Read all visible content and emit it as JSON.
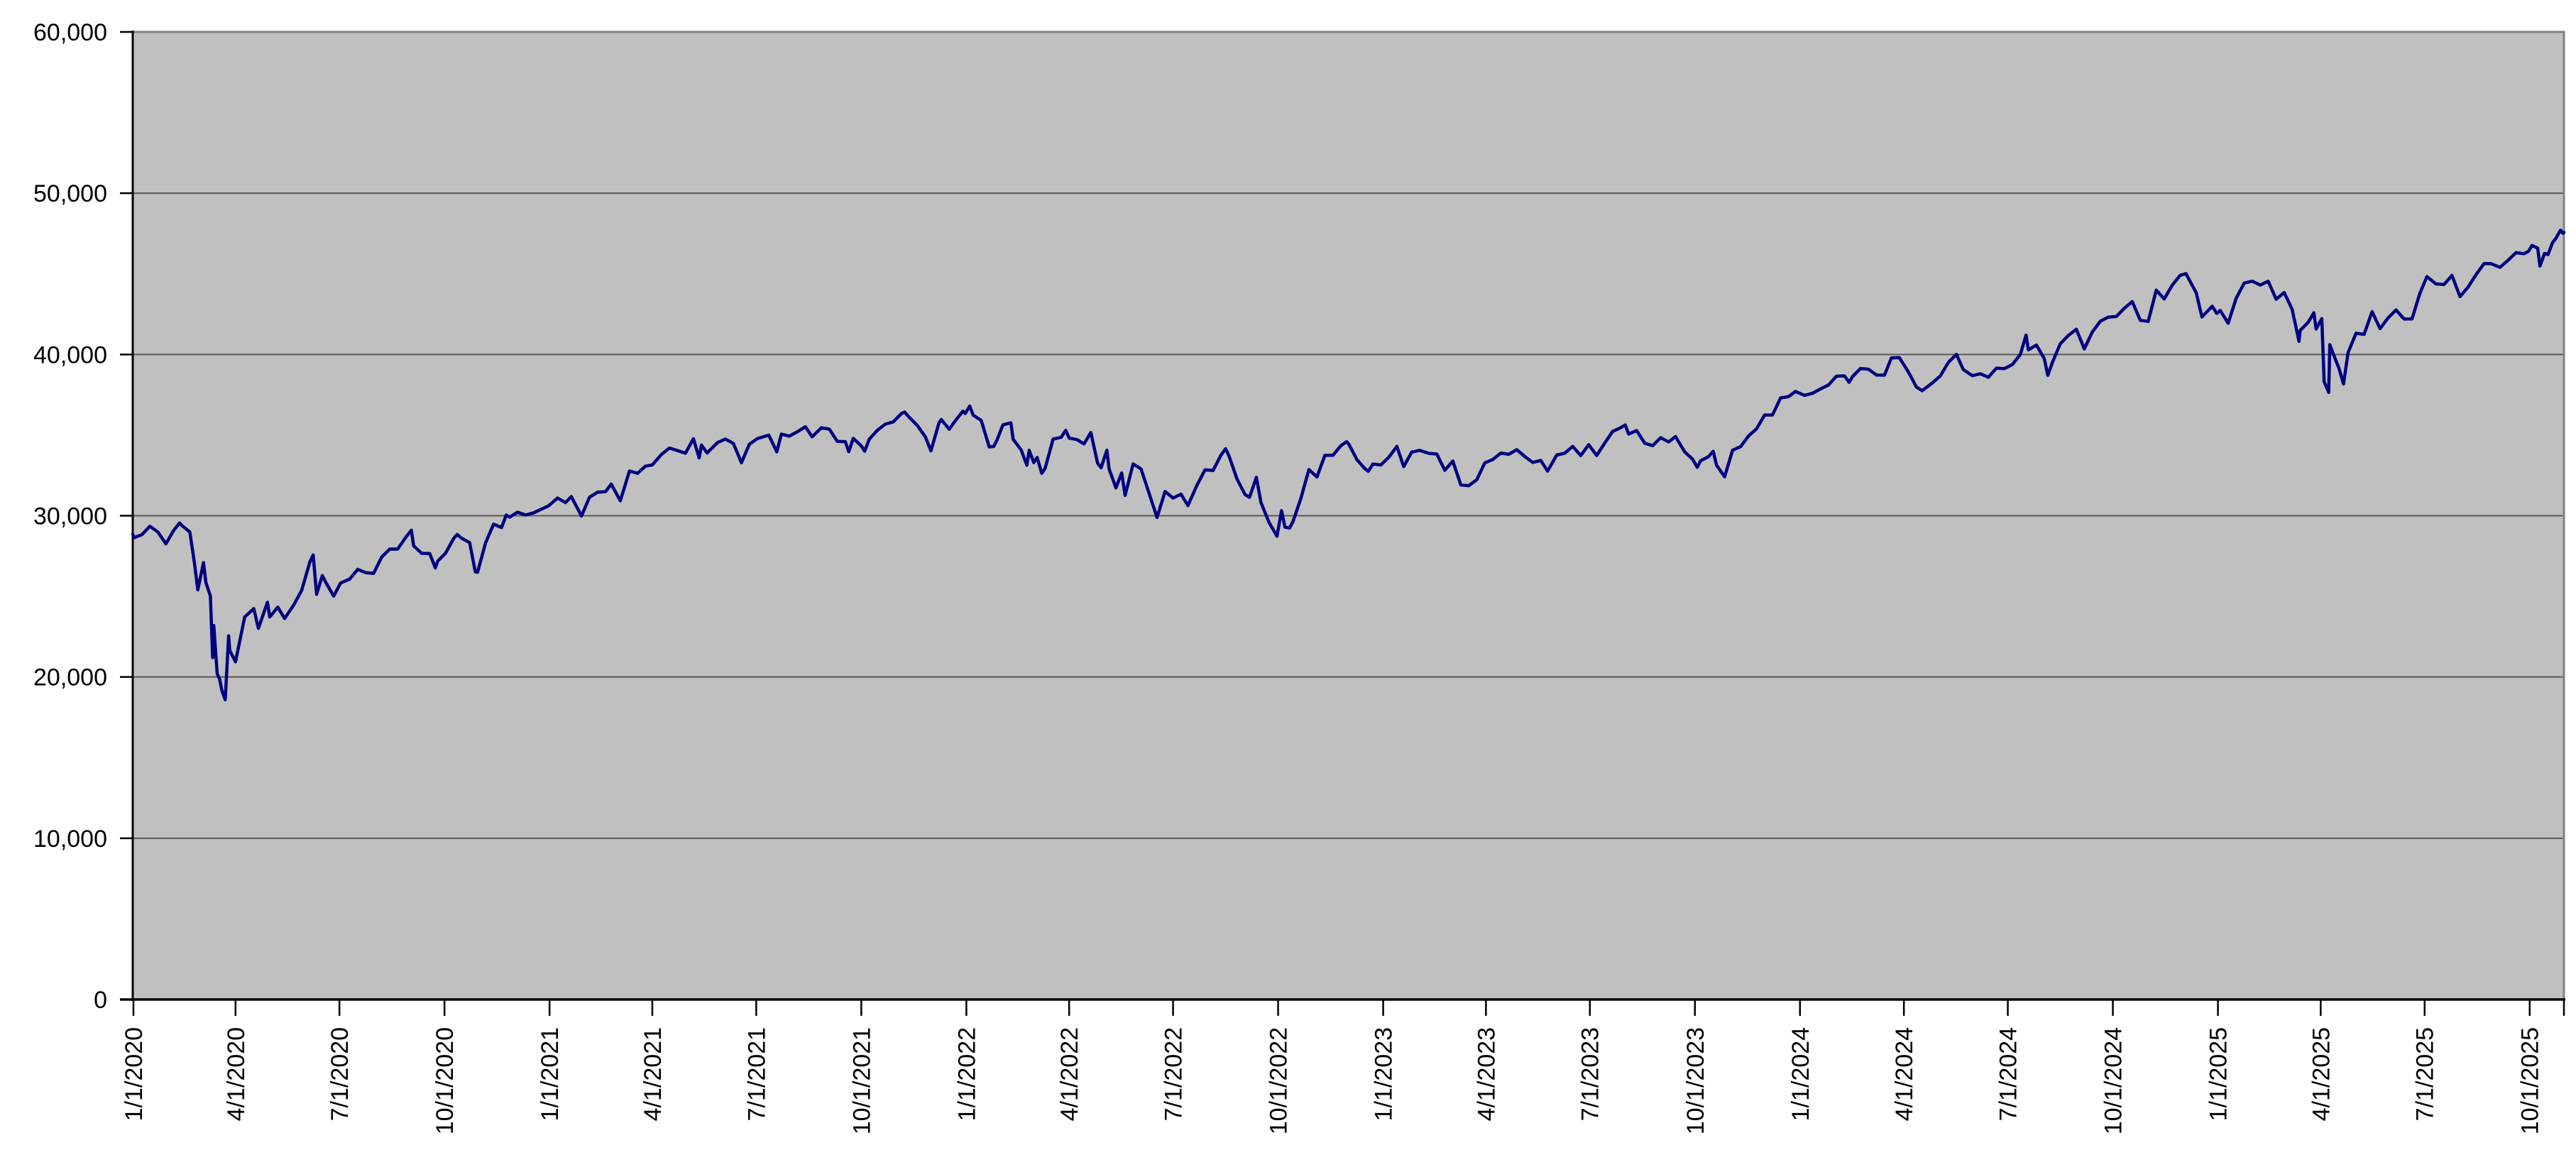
{
  "colors": {
    "page_bg": "#ffffff",
    "plot_bg": "#c0c0c0",
    "line": "#000080",
    "gridline": "#595959",
    "plot_border": "#808080",
    "axis": "#000000",
    "label": "#000000"
  },
  "chart_data": {
    "type": "line",
    "title": "",
    "legend": "none",
    "grid": true,
    "ylim": [
      0,
      60000
    ],
    "y_ticks": [
      0,
      10000,
      20000,
      30000,
      40000,
      50000,
      60000
    ],
    "y_tick_labels": [
      "0",
      "10,000",
      "20,000",
      "30,000",
      "40,000",
      "50,000",
      "60,000"
    ],
    "x_tick_labels": [
      "1/1/2020",
      "4/1/2020",
      "7/1/2020",
      "10/1/2020",
      "1/1/2021",
      "4/1/2021",
      "7/1/2021",
      "10/1/2021",
      "1/1/2022",
      "4/1/2022",
      "7/1/2022",
      "10/1/2022",
      "1/1/2023",
      "4/1/2023",
      "7/1/2023",
      "10/1/2023",
      "1/1/2024",
      "4/1/2024",
      "7/1/2024",
      "10/1/2024",
      "1/1/2025",
      "4/1/2025",
      "7/1/2025",
      "10/1/2025"
    ],
    "points": [
      [
        "1/2/2020",
        28869
      ],
      [
        "1/3/2020",
        28635
      ],
      [
        "1/10/2020",
        28824
      ],
      [
        "1/17/2020",
        29348
      ],
      [
        "1/24/2020",
        28990
      ],
      [
        "1/31/2020",
        28256
      ],
      [
        "2/7/2020",
        29103
      ],
      [
        "2/12/2020",
        29551
      ],
      [
        "2/14/2020",
        29398
      ],
      [
        "2/21/2020",
        28992
      ],
      [
        "2/25/2020",
        27081
      ],
      [
        "2/28/2020",
        25409
      ],
      [
        "3/4/2020",
        27091
      ],
      [
        "3/6/2020",
        25865
      ],
      [
        "3/10/2020",
        25018
      ],
      [
        "3/12/2020",
        21201
      ],
      [
        "3/13/2020",
        23186
      ],
      [
        "3/16/2020",
        20188
      ],
      [
        "3/18/2020",
        19899
      ],
      [
        "3/20/2020",
        19174
      ],
      [
        "3/23/2020",
        18592
      ],
      [
        "3/26/2020",
        22552
      ],
      [
        "3/27/2020",
        21637
      ],
      [
        "4/1/2020",
        20944
      ],
      [
        "4/9/2020",
        23719
      ],
      [
        "4/17/2020",
        24242
      ],
      [
        "4/21/2020",
        23019
      ],
      [
        "4/29/2020",
        24634
      ],
      [
        "5/1/2020",
        23724
      ],
      [
        "5/8/2020",
        24331
      ],
      [
        "5/14/2020",
        23625
      ],
      [
        "5/22/2020",
        24465
      ],
      [
        "5/29/2020",
        25383
      ],
      [
        "6/5/2020",
        27111
      ],
      [
        "6/8/2020",
        27572
      ],
      [
        "6/11/2020",
        25128
      ],
      [
        "6/16/2020",
        26290
      ],
      [
        "6/19/2020",
        25871
      ],
      [
        "6/26/2020",
        25016
      ],
      [
        "7/2/2020",
        25827
      ],
      [
        "7/10/2020",
        26075
      ],
      [
        "7/17/2020",
        26672
      ],
      [
        "7/24/2020",
        26470
      ],
      [
        "7/31/2020",
        26428
      ],
      [
        "8/7/2020",
        27433
      ],
      [
        "8/14/2020",
        27931
      ],
      [
        "8/21/2020",
        27930
      ],
      [
        "8/28/2020",
        28654
      ],
      [
        "9/2/2020",
        29101
      ],
      [
        "9/4/2020",
        28133
      ],
      [
        "9/11/2020",
        27666
      ],
      [
        "9/18/2020",
        27657
      ],
      [
        "9/23/2020",
        26763
      ],
      [
        "9/25/2020",
        27174
      ],
      [
        "10/2/2020",
        27683
      ],
      [
        "10/9/2020",
        28587
      ],
      [
        "10/12/2020",
        28838
      ],
      [
        "10/16/2020",
        28606
      ],
      [
        "10/23/2020",
        28336
      ],
      [
        "10/28/2020",
        26520
      ],
      [
        "10/30/2020",
        26502
      ],
      [
        "11/6/2020",
        28323
      ],
      [
        "11/13/2020",
        29480
      ],
      [
        "11/20/2020",
        29263
      ],
      [
        "11/24/2020",
        30046
      ],
      [
        "11/27/2020",
        29910
      ],
      [
        "12/4/2020",
        30218
      ],
      [
        "12/11/2020",
        30046
      ],
      [
        "12/18/2020",
        30179
      ],
      [
        "12/31/2020",
        30606
      ],
      [
        "1/8/2021",
        31098
      ],
      [
        "1/15/2021",
        30814
      ],
      [
        "1/20/2021",
        31188
      ],
      [
        "1/29/2021",
        29983
      ],
      [
        "2/5/2021",
        31148
      ],
      [
        "2/12/2021",
        31458
      ],
      [
        "2/19/2021",
        31494
      ],
      [
        "2/24/2021",
        31962
      ],
      [
        "3/4/2021",
        30924
      ],
      [
        "3/12/2021",
        32779
      ],
      [
        "3/19/2021",
        32628
      ],
      [
        "3/26/2021",
        33073
      ],
      [
        "4/1/2021",
        33153
      ],
      [
        "4/9/2021",
        33801
      ],
      [
        "4/16/2021",
        34201
      ],
      [
        "4/23/2021",
        34043
      ],
      [
        "4/30/2021",
        33875
      ],
      [
        "5/7/2021",
        34778
      ],
      [
        "5/12/2021",
        33588
      ],
      [
        "5/14/2021",
        34382
      ],
      [
        "5/19/2021",
        33896
      ],
      [
        "5/28/2021",
        34529
      ],
      [
        "6/4/2021",
        34756
      ],
      [
        "6/11/2021",
        34480
      ],
      [
        "6/18/2021",
        33290
      ],
      [
        "6/25/2021",
        34434
      ],
      [
        "7/2/2021",
        34786
      ],
      [
        "7/12/2021",
        34996
      ],
      [
        "7/19/2021",
        33962
      ],
      [
        "7/23/2021",
        35062
      ],
      [
        "7/30/2021",
        34935
      ],
      [
        "8/6/2021",
        35209
      ],
      [
        "8/13/2021",
        35515
      ],
      [
        "8/19/2021",
        34894
      ],
      [
        "8/27/2021",
        35456
      ],
      [
        "9/3/2021",
        35369
      ],
      [
        "9/10/2021",
        34608
      ],
      [
        "9/17/2021",
        34585
      ],
      [
        "9/20/2021",
        33970
      ],
      [
        "9/24/2021",
        34798
      ],
      [
        "10/1/2021",
        34326
      ],
      [
        "10/4/2021",
        34003
      ],
      [
        "10/8/2021",
        34746
      ],
      [
        "10/15/2021",
        35295
      ],
      [
        "10/22/2021",
        35677
      ],
      [
        "10/29/2021",
        35820
      ],
      [
        "11/5/2021",
        36328
      ],
      [
        "11/8/2021",
        36432
      ],
      [
        "11/12/2021",
        36100
      ],
      [
        "11/19/2021",
        35602
      ],
      [
        "11/26/2021",
        34899
      ],
      [
        "12/1/2021",
        34022
      ],
      [
        "12/8/2021",
        35755
      ],
      [
        "12/10/2021",
        35971
      ],
      [
        "12/17/2021",
        35365
      ],
      [
        "12/23/2021",
        35950
      ],
      [
        "12/29/2021",
        36489
      ],
      [
        "12/31/2021",
        36338
      ],
      [
        "1/4/2022",
        36800
      ],
      [
        "1/7/2022",
        36232
      ],
      [
        "1/14/2022",
        35912
      ],
      [
        "1/21/2022",
        34265
      ],
      [
        "1/25/2022",
        34297
      ],
      [
        "1/28/2022",
        34725
      ],
      [
        "2/2/2022",
        35629
      ],
      [
        "2/9/2022",
        35768
      ],
      [
        "2/11/2022",
        34738
      ],
      [
        "2/18/2022",
        34079
      ],
      [
        "2/23/2022",
        33132
      ],
      [
        "2/25/2022",
        34059
      ],
      [
        "3/1/2022",
        33295
      ],
      [
        "3/4/2022",
        33615
      ],
      [
        "3/8/2022",
        32632
      ],
      [
        "3/11/2022",
        32944
      ],
      [
        "3/18/2022",
        34755
      ],
      [
        "3/25/2022",
        34861
      ],
      [
        "3/29/2022",
        35294
      ],
      [
        "4/1/2022",
        34818
      ],
      [
        "4/8/2022",
        34721
      ],
      [
        "4/14/2022",
        34451
      ],
      [
        "4/20/2022",
        35160
      ],
      [
        "4/26/2022",
        33240
      ],
      [
        "4/29/2022",
        32977
      ],
      [
        "5/4/2022",
        34061
      ],
      [
        "5/6/2022",
        32899
      ],
      [
        "5/12/2022",
        31730
      ],
      [
        "5/17/2022",
        32654
      ],
      [
        "5/20/2022",
        31261
      ],
      [
        "5/27/2022",
        33213
      ],
      [
        "6/3/2022",
        32900
      ],
      [
        "6/10/2022",
        31393
      ],
      [
        "6/17/2022",
        29889
      ],
      [
        "6/24/2022",
        31500
      ],
      [
        "7/1/2022",
        31097
      ],
      [
        "7/8/2022",
        31338
      ],
      [
        "7/14/2022",
        30630
      ],
      [
        "7/22/2022",
        31899
      ],
      [
        "7/29/2022",
        32845
      ],
      [
        "8/5/2022",
        32803
      ],
      [
        "8/12/2022",
        33761
      ],
      [
        "8/16/2022",
        34152
      ],
      [
        "8/19/2022",
        33707
      ],
      [
        "8/26/2022",
        32283
      ],
      [
        "9/2/2022",
        31318
      ],
      [
        "9/6/2022",
        31145
      ],
      [
        "9/12/2022",
        32381
      ],
      [
        "9/16/2022",
        30822
      ],
      [
        "9/23/2022",
        29590
      ],
      [
        "9/30/2022",
        28726
      ],
      [
        "10/4/2022",
        30316
      ],
      [
        "10/7/2022",
        29297
      ],
      [
        "10/11/2022",
        29239
      ],
      [
        "10/14/2022",
        29635
      ],
      [
        "10/21/2022",
        31083
      ],
      [
        "10/28/2022",
        32862
      ],
      [
        "11/4/2022",
        32403
      ],
      [
        "11/11/2022",
        33748
      ],
      [
        "11/18/2022",
        33746
      ],
      [
        "11/25/2022",
        34347
      ],
      [
        "11/30/2022",
        34590
      ],
      [
        "12/2/2022",
        34429
      ],
      [
        "12/9/2022",
        33476
      ],
      [
        "12/16/2022",
        32920
      ],
      [
        "12/19/2022",
        32757
      ],
      [
        "12/23/2022",
        33204
      ],
      [
        "12/30/2022",
        33147
      ],
      [
        "1/6/2023",
        33631
      ],
      [
        "1/13/2023",
        34303
      ],
      [
        "1/19/2023",
        33045
      ],
      [
        "1/26/2023",
        33949
      ],
      [
        "2/2/2023",
        34054
      ],
      [
        "2/10/2023",
        33869
      ],
      [
        "2/17/2023",
        33827
      ],
      [
        "2/24/2023",
        32817
      ],
      [
        "3/3/2023",
        33391
      ],
      [
        "3/10/2023",
        31910
      ],
      [
        "3/15/2023",
        31875
      ],
      [
        "3/17/2023",
        31862
      ],
      [
        "3/24/2023",
        32238
      ],
      [
        "3/31/2023",
        33274
      ],
      [
        "4/7/2023",
        33485
      ],
      [
        "4/14/2023",
        33886
      ],
      [
        "4/21/2023",
        33809
      ],
      [
        "4/28/2023",
        34098
      ],
      [
        "5/5/2023",
        33674
      ],
      [
        "5/12/2023",
        33300
      ],
      [
        "5/19/2023",
        33427
      ],
      [
        "5/25/2023",
        32765
      ],
      [
        "6/2/2023",
        33763
      ],
      [
        "6/9/2023",
        33877
      ],
      [
        "6/16/2023",
        34299
      ],
      [
        "6/23/2023",
        33727
      ],
      [
        "6/30/2023",
        34408
      ],
      [
        "7/7/2023",
        33735
      ],
      [
        "7/14/2023",
        34509
      ],
      [
        "7/21/2023",
        35228
      ],
      [
        "7/28/2023",
        35459
      ],
      [
        "8/1/2023",
        35630
      ],
      [
        "8/4/2023",
        35066
      ],
      [
        "8/11/2023",
        35281
      ],
      [
        "8/18/2023",
        34501
      ],
      [
        "8/25/2023",
        34347
      ],
      [
        "9/1/2023",
        34838
      ],
      [
        "9/8/2023",
        34577
      ],
      [
        "9/14/2023",
        34907
      ],
      [
        "9/22/2023",
        33964
      ],
      [
        "9/29/2023",
        33508
      ],
      [
        "10/3/2023",
        33002
      ],
      [
        "10/6/2023",
        33408
      ],
      [
        "10/13/2023",
        33670
      ],
      [
        "10/17/2023",
        33997
      ],
      [
        "10/20/2023",
        33127
      ],
      [
        "10/27/2023",
        32418
      ],
      [
        "11/3/2023",
        34061
      ],
      [
        "11/10/2023",
        34283
      ],
      [
        "11/17/2023",
        34947
      ],
      [
        "11/24/2023",
        35390
      ],
      [
        "12/1/2023",
        36245
      ],
      [
        "12/8/2023",
        36248
      ],
      [
        "12/15/2023",
        37305
      ],
      [
        "12/22/2023",
        37386
      ],
      [
        "12/28/2023",
        37710
      ],
      [
        "1/5/2024",
        37466
      ],
      [
        "1/12/2024",
        37593
      ],
      [
        "1/19/2024",
        37864
      ],
      [
        "1/26/2024",
        38109
      ],
      [
        "2/2/2024",
        38654
      ],
      [
        "2/9/2024",
        38672
      ],
      [
        "2/13/2024",
        38273
      ],
      [
        "2/16/2024",
        38628
      ],
      [
        "2/23/2024",
        39132
      ],
      [
        "3/1/2024",
        39087
      ],
      [
        "3/8/2024",
        38723
      ],
      [
        "3/15/2024",
        38715
      ],
      [
        "3/21/2024",
        39781
      ],
      [
        "3/28/2024",
        39807
      ],
      [
        "4/5/2024",
        38904
      ],
      [
        "4/12/2024",
        37983
      ],
      [
        "4/17/2024",
        37753
      ],
      [
        "4/26/2024",
        38240
      ],
      [
        "5/3/2024",
        38676
      ],
      [
        "5/10/2024",
        39513
      ],
      [
        "5/17/2024",
        40004
      ],
      [
        "5/23/2024",
        39065
      ],
      [
        "5/31/2024",
        38686
      ],
      [
        "6/7/2024",
        38799
      ],
      [
        "6/14/2024",
        38589
      ],
      [
        "6/21/2024",
        39150
      ],
      [
        "6/28/2024",
        39119
      ],
      [
        "7/5/2024",
        39376
      ],
      [
        "7/12/2024",
        40001
      ],
      [
        "7/17/2024",
        41198
      ],
      [
        "7/19/2024",
        40288
      ],
      [
        "7/26/2024",
        40589
      ],
      [
        "8/2/2024",
        39737
      ],
      [
        "8/5/2024",
        38703
      ],
      [
        "8/9/2024",
        39498
      ],
      [
        "8/16/2024",
        40660
      ],
      [
        "8/23/2024",
        41175
      ],
      [
        "8/30/2024",
        41563
      ],
      [
        "9/6/2024",
        40345
      ],
      [
        "9/13/2024",
        41394
      ],
      [
        "9/20/2024",
        42063
      ],
      [
        "9/27/2024",
        42313
      ],
      [
        "10/4/2024",
        42353
      ],
      [
        "10/11/2024",
        42864
      ],
      [
        "10/18/2024",
        43276
      ],
      [
        "10/25/2024",
        42114
      ],
      [
        "11/1/2024",
        42052
      ],
      [
        "11/8/2024",
        43989
      ],
      [
        "11/15/2024",
        43445
      ],
      [
        "11/22/2024",
        44297
      ],
      [
        "11/29/2024",
        44911
      ],
      [
        "12/4/2024",
        45014
      ],
      [
        "12/13/2024",
        43828
      ],
      [
        "12/18/2024",
        42327
      ],
      [
        "12/27/2024",
        42992
      ],
      [
        "12/31/2024",
        42544
      ],
      [
        "1/3/2025",
        42732
      ],
      [
        "1/10/2025",
        41938
      ],
      [
        "1/17/2025",
        43488
      ],
      [
        "1/24/2025",
        44424
      ],
      [
        "1/31/2025",
        44545
      ],
      [
        "2/7/2025",
        44303
      ],
      [
        "2/14/2025",
        44546
      ],
      [
        "2/21/2025",
        43428
      ],
      [
        "2/28/2025",
        43841
      ],
      [
        "3/7/2025",
        42802
      ],
      [
        "3/13/2025",
        40814
      ],
      [
        "3/14/2025",
        41488
      ],
      [
        "3/21/2025",
        41985
      ],
      [
        "3/26/2025",
        42587
      ],
      [
        "3/28/2025",
        41583
      ],
      [
        "4/2/2025",
        42225
      ],
      [
        "4/4/2025",
        38315
      ],
      [
        "4/8/2025",
        37646
      ],
      [
        "4/9/2025",
        40608
      ],
      [
        "4/11/2025",
        40213
      ],
      [
        "4/17/2025",
        39142
      ],
      [
        "4/21/2025",
        38170
      ],
      [
        "4/25/2025",
        40114
      ],
      [
        "5/2/2025",
        41317
      ],
      [
        "5/9/2025",
        41249
      ],
      [
        "5/16/2025",
        42655
      ],
      [
        "5/23/2025",
        41603
      ],
      [
        "5/30/2025",
        42270
      ],
      [
        "6/6/2025",
        42763
      ],
      [
        "6/13/2025",
        42198
      ],
      [
        "6/20/2025",
        42207
      ],
      [
        "6/27/2025",
        43819
      ],
      [
        "7/3/2025",
        44829
      ],
      [
        "7/11/2025",
        44372
      ],
      [
        "7/18/2025",
        44342
      ],
      [
        "7/25/2025",
        44902
      ],
      [
        "8/1/2025",
        43589
      ],
      [
        "8/8/2025",
        44176
      ],
      [
        "8/15/2025",
        44946
      ],
      [
        "8/22/2025",
        45632
      ],
      [
        "8/28/2025",
        45637
      ],
      [
        "9/5/2025",
        45401
      ],
      [
        "9/12/2025",
        45834
      ],
      [
        "9/19/2025",
        46315
      ],
      [
        "9/26/2025",
        46247
      ],
      [
        "9/30/2025",
        46398
      ],
      [
        "10/3/2025",
        46758
      ],
      [
        "10/8/2025",
        46601
      ],
      [
        "10/10/2025",
        45480
      ],
      [
        "10/14/2025",
        46270
      ],
      [
        "10/17/2025",
        46190
      ],
      [
        "10/21/2025",
        46925
      ],
      [
        "10/24/2025",
        47207
      ],
      [
        "10/28/2025",
        47707
      ],
      [
        "10/30/2025",
        47522
      ],
      [
        "10/31/2025",
        47563
      ]
    ]
  }
}
